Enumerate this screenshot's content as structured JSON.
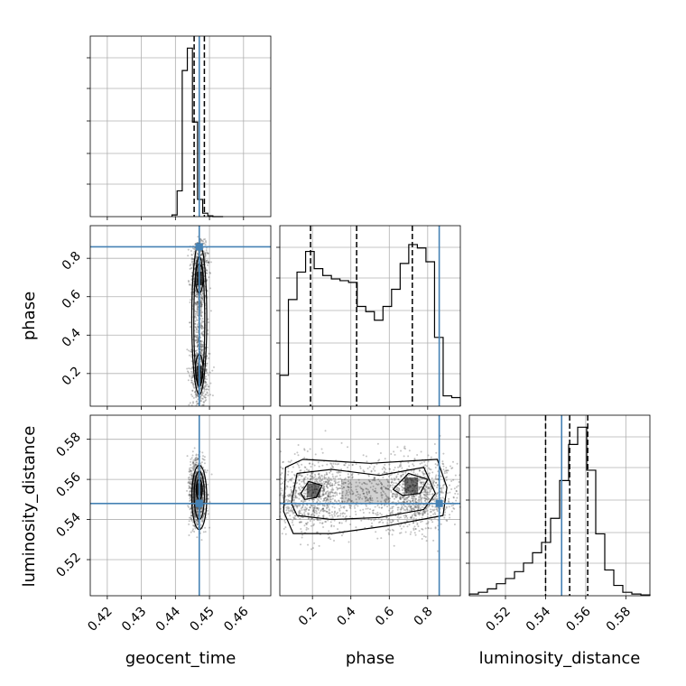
{
  "chart_data": {
    "type": "corner",
    "parameters": [
      "geocent_time",
      "phase",
      "luminosity_distance"
    ],
    "truths": {
      "geocent_time": 0.447,
      "phase": 0.86,
      "luminosity_distance": 0.548
    },
    "colors": {
      "truth": "#4682b4",
      "hist": "#000000",
      "grid": "#b0b0b0",
      "points": "#555555"
    },
    "grid": true,
    "panels": {
      "geocent_time_hist": {
        "xlim": [
          0.415,
          0.468
        ],
        "bins_x": [
          0.439,
          0.4405,
          0.442,
          0.4435,
          0.445,
          0.4465,
          0.448,
          0.4495,
          0.451,
          0.4525,
          0.454
        ],
        "counts": [
          0.01,
          0.15,
          0.85,
          0.98,
          0.55,
          0.1,
          0.02,
          0.005,
          0,
          0
        ],
        "quantiles": [
          0.4455,
          0.447,
          0.4485
        ],
        "ylim": [
          0,
          1.05
        ]
      },
      "phase_hist": {
        "xlim": [
          0.03,
          0.97
        ],
        "counts": [
          0.18,
          0.62,
          0.78,
          0.9,
          0.8,
          0.76,
          0.74,
          0.73,
          0.72,
          0.58,
          0.55,
          0.5,
          0.58,
          0.68,
          0.83,
          0.94,
          0.92,
          0.84,
          0.4,
          0.06,
          0.05
        ],
        "quantiles": [
          0.19,
          0.43,
          0.72
        ],
        "ylim": [
          0,
          1.05
        ]
      },
      "luminosity_distance_hist": {
        "xlim": [
          0.502,
          0.592
        ],
        "counts": [
          0.01,
          0.02,
          0.04,
          0.07,
          0.1,
          0.14,
          0.19,
          0.25,
          0.31,
          0.45,
          0.67,
          0.88,
          0.98,
          0.73,
          0.36,
          0.15,
          0.06,
          0.02,
          0.01,
          0.005
        ],
        "quantiles": [
          0.54,
          0.552,
          0.561
        ],
        "ylim": [
          0,
          1.05
        ]
      },
      "phase_vs_geocent_time": {
        "xlim": [
          0.415,
          0.468
        ],
        "ylim": [
          0.03,
          0.97
        ]
      },
      "luminosity_distance_vs_geocent_time": {
        "xlim": [
          0.415,
          0.468
        ],
        "ylim": [
          0.502,
          0.592
        ]
      },
      "luminosity_distance_vs_phase": {
        "xlim": [
          0.03,
          0.97
        ],
        "ylim": [
          0.502,
          0.592
        ]
      }
    },
    "ticks": {
      "geocent_time": [
        "0.42",
        "0.43",
        "0.44",
        "0.45",
        "0.46"
      ],
      "geocent_time_values": [
        0.42,
        0.43,
        0.44,
        0.45,
        0.46
      ],
      "phase_y": [
        "0.2",
        "0.4",
        "0.6",
        "0.8"
      ],
      "phase_y_values": [
        0.2,
        0.4,
        0.6,
        0.8
      ],
      "phase_x": [
        "0.2",
        "0.4",
        "0.6",
        "0.8"
      ],
      "phase_x_values": [
        0.2,
        0.4,
        0.6,
        0.8
      ],
      "luminosity_distance_y": [
        "0.52",
        "0.54",
        "0.56",
        "0.58"
      ],
      "luminosity_distance_y_values": [
        0.52,
        0.54,
        0.56,
        0.58
      ],
      "luminosity_distance_x": [
        "0.52",
        "0.54",
        "0.56",
        "0.58"
      ],
      "luminosity_distance_x_values": [
        0.52,
        0.54,
        0.56,
        0.58
      ]
    },
    "axis_labels": {
      "x_geocent_time": "geocent_time",
      "x_phase": "phase",
      "x_luminosity_distance": "luminosity_distance",
      "y_phase": "phase",
      "y_luminosity_distance": "luminosity_distance"
    }
  }
}
